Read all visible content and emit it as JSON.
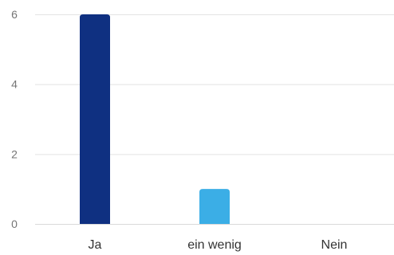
{
  "chart_data": {
    "type": "bar",
    "categories": [
      "Ja",
      "ein wenig",
      "Nein"
    ],
    "values": [
      6,
      1,
      0
    ],
    "colors": [
      "#0f3081",
      "#3baee6",
      "#3baee6"
    ],
    "ylim": [
      0,
      6
    ],
    "yticks": [
      0,
      2,
      4,
      6
    ],
    "title": "",
    "xlabel": "",
    "ylabel": "",
    "grid": true,
    "legend": "none"
  }
}
